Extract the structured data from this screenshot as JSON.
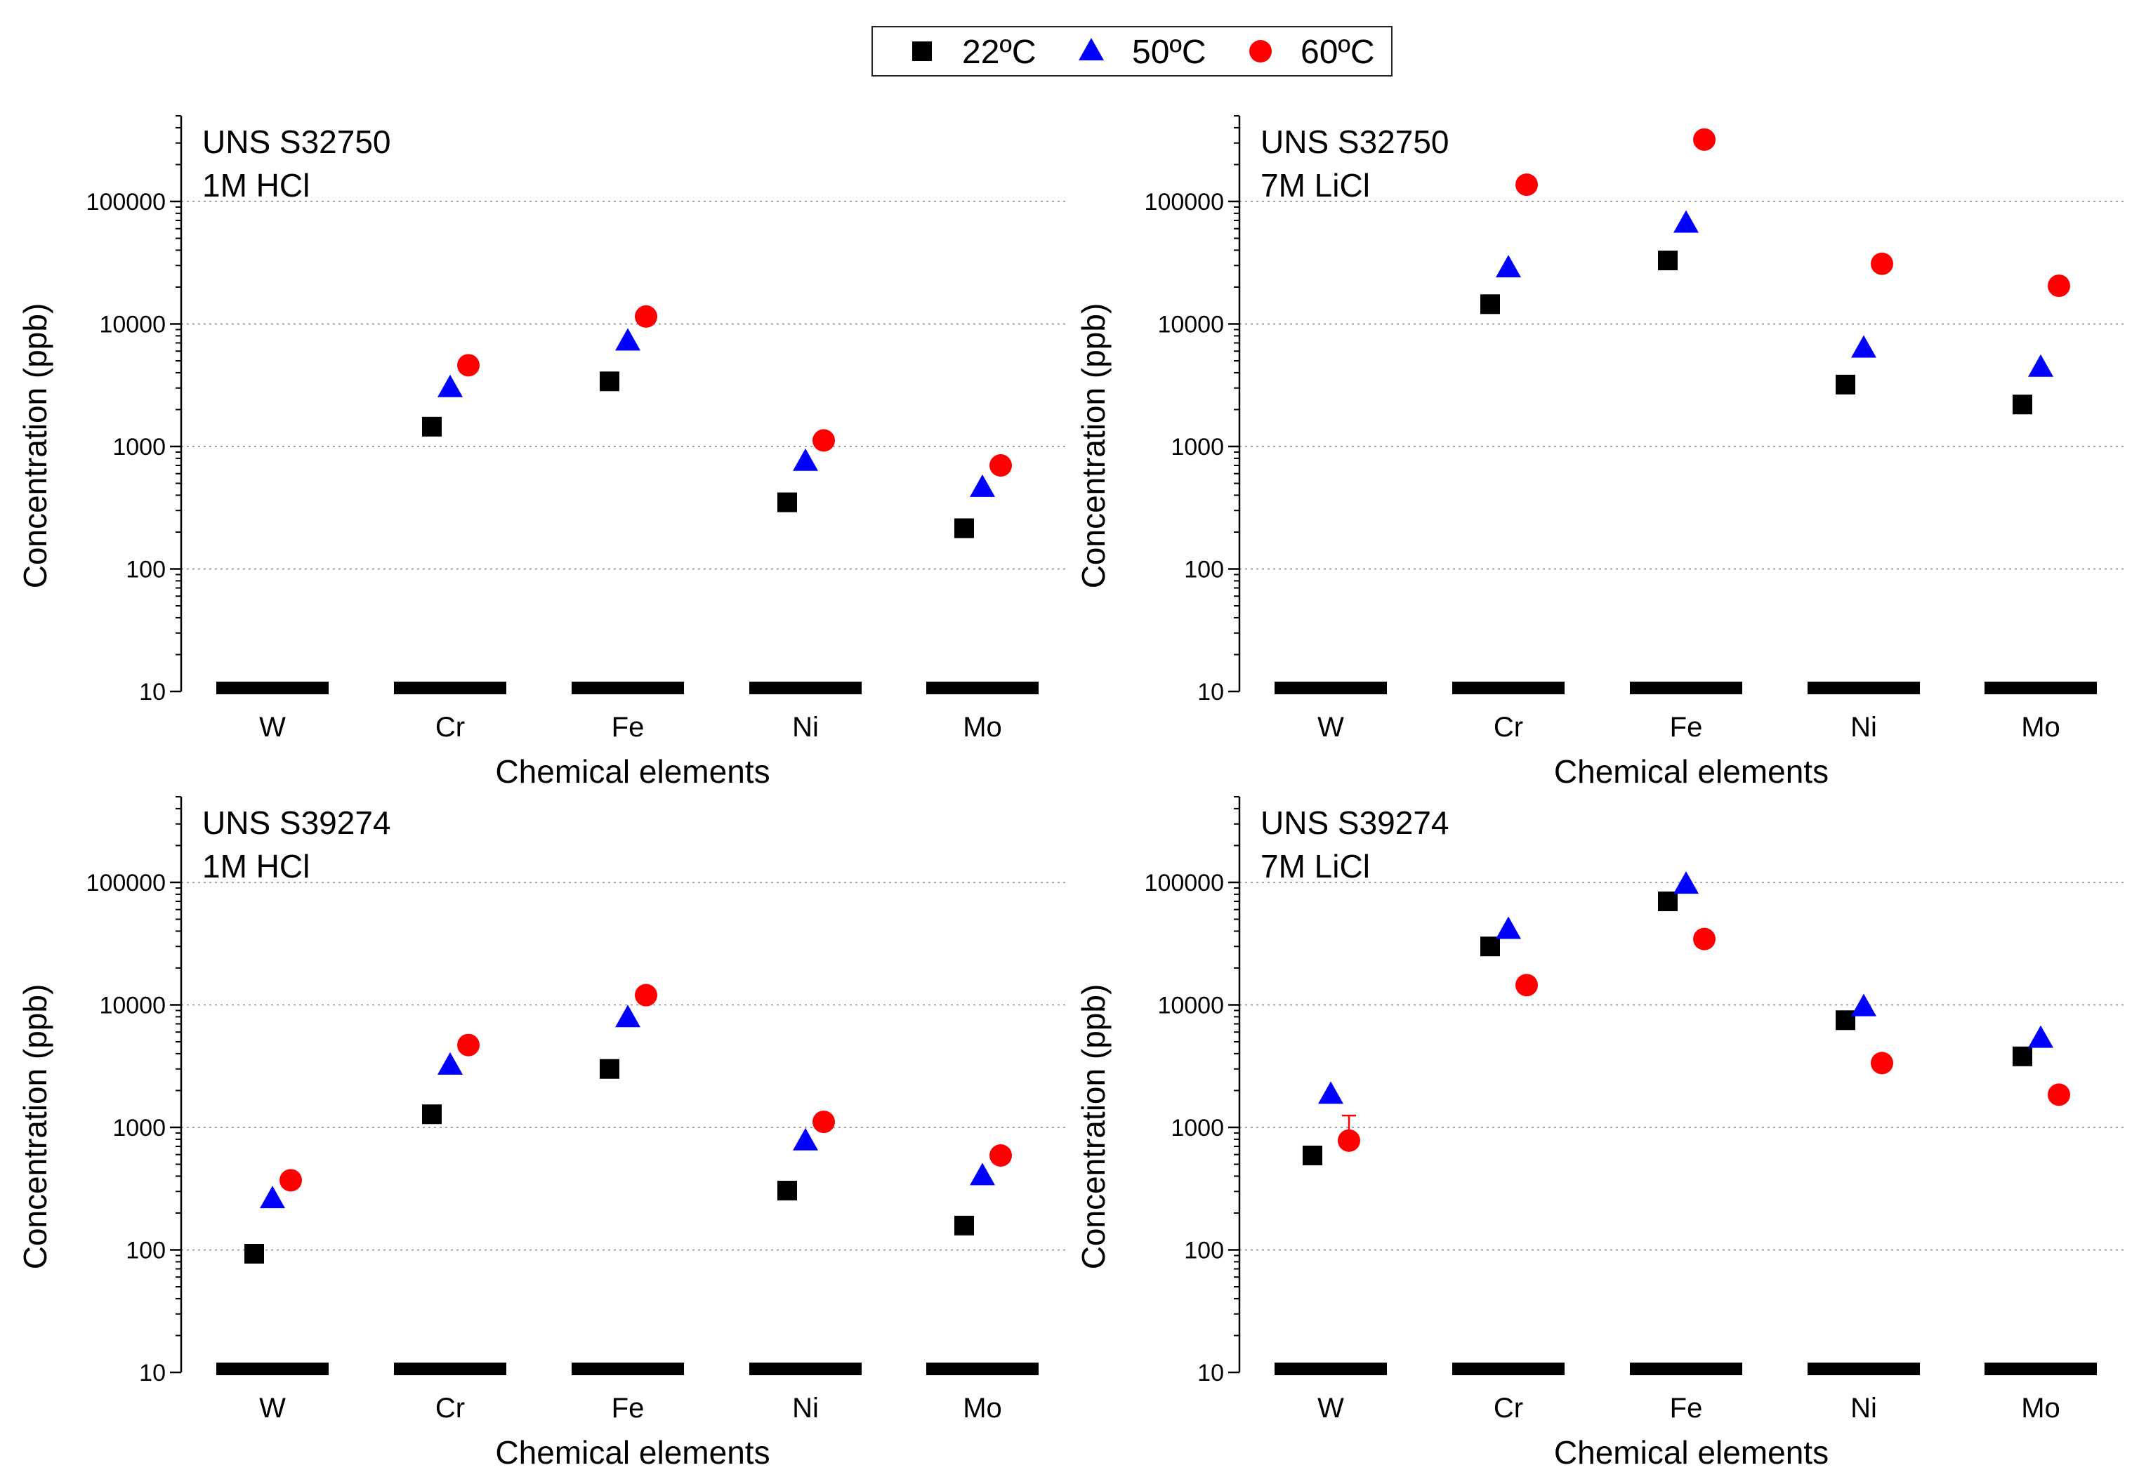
{
  "chart_data": {
    "legend": {
      "location": "top-center",
      "entries": [
        {
          "label": "22ºC",
          "marker": "square",
          "color": "#000000"
        },
        {
          "label": "50ºC",
          "marker": "triangle",
          "color": "#0000ff"
        },
        {
          "label": "60ºC",
          "marker": "circle",
          "color": "#ff0000"
        }
      ]
    },
    "panels": [
      {
        "type": "scatter",
        "title_lines": [
          "UNS S32750",
          "1M HCl"
        ],
        "xlabel": "Chemical elements",
        "ylabel": "Concentration (ppb)",
        "yscale": "log",
        "ylim": [
          10,
          500000
        ],
        "yticks": [
          10,
          100,
          1000,
          10000,
          100000
        ],
        "ytick_labels": [
          "10",
          "100",
          "1000",
          "10000",
          "100000"
        ],
        "categories": [
          "W",
          "Cr",
          "Fe",
          "Ni",
          "Mo"
        ],
        "grid": "horizontal dotted",
        "series": [
          {
            "name": "22ºC",
            "values": [
              null,
              1450,
              3400,
              350,
              215
            ]
          },
          {
            "name": "50ºC",
            "values": [
              null,
              3000,
              7200,
              750,
              460
            ]
          },
          {
            "name": "60ºC",
            "values": [
              null,
              4600,
              11500,
              1120,
              700
            ]
          }
        ]
      },
      {
        "type": "scatter",
        "title_lines": [
          "UNS S32750",
          "7M LiCl"
        ],
        "xlabel": "Chemical elements",
        "ylabel": "Concentration (ppb)",
        "yscale": "log",
        "ylim": [
          10,
          500000
        ],
        "yticks": [
          10,
          100,
          1000,
          10000,
          100000
        ],
        "ytick_labels": [
          "10",
          "100",
          "1000",
          "10000",
          "100000"
        ],
        "categories": [
          "W",
          "Cr",
          "Fe",
          "Ni",
          "Mo"
        ],
        "grid": "horizontal dotted",
        "series": [
          {
            "name": "22ºC",
            "values": [
              null,
              14500,
              33000,
              3200,
              2200
            ]
          },
          {
            "name": "50ºC",
            "values": [
              null,
              28500,
              66000,
              6300,
              4400
            ]
          },
          {
            "name": "60ºC",
            "values": [
              null,
              137000,
              320000,
              31000,
              20500
            ]
          }
        ]
      },
      {
        "type": "scatter",
        "title_lines": [
          "UNS S39274",
          "1M HCl"
        ],
        "xlabel": "Chemical elements",
        "ylabel": "Concentration (ppb)",
        "yscale": "log",
        "ylim": [
          10,
          500000
        ],
        "yticks": [
          10,
          100,
          1000,
          10000,
          100000
        ],
        "ytick_labels": [
          "10",
          "100",
          "1000",
          "10000",
          "100000"
        ],
        "categories": [
          "W",
          "Cr",
          "Fe",
          "Ni",
          "Mo"
        ],
        "grid": "horizontal dotted",
        "series": [
          {
            "name": "22ºC",
            "values": [
              93,
              1280,
              3000,
              305,
              158
            ]
          },
          {
            "name": "50ºC",
            "values": [
              260,
              3200,
              7800,
              770,
              400
            ]
          },
          {
            "name": "60ºC",
            "values": [
              370,
              4700,
              12000,
              1110,
              590
            ]
          }
        ]
      },
      {
        "type": "scatter",
        "title_lines": [
          "UNS S39274",
          "7M LiCl"
        ],
        "xlabel": "Chemical elements",
        "ylabel": "Concentration (ppb)",
        "yscale": "log",
        "ylim": [
          10,
          500000
        ],
        "yticks": [
          10,
          100,
          1000,
          10000,
          100000
        ],
        "ytick_labels": [
          "10",
          "100",
          "1000",
          "10000",
          "100000"
        ],
        "categories": [
          "W",
          "Cr",
          "Fe",
          "Ni",
          "Mo"
        ],
        "grid": "horizontal dotted",
        "series": [
          {
            "name": "22ºC",
            "values": [
              590,
              30000,
              70000,
              7500,
              3800
            ]
          },
          {
            "name": "50ºC",
            "values": [
              1850,
              41000,
              96000,
              9600,
              5300
            ]
          },
          {
            "name": "60ºC",
            "values": [
              780,
              14500,
              34500,
              3350,
              1850
            ],
            "error_upper": [
              1250,
              null,
              null,
              null,
              null
            ]
          }
        ]
      }
    ]
  }
}
